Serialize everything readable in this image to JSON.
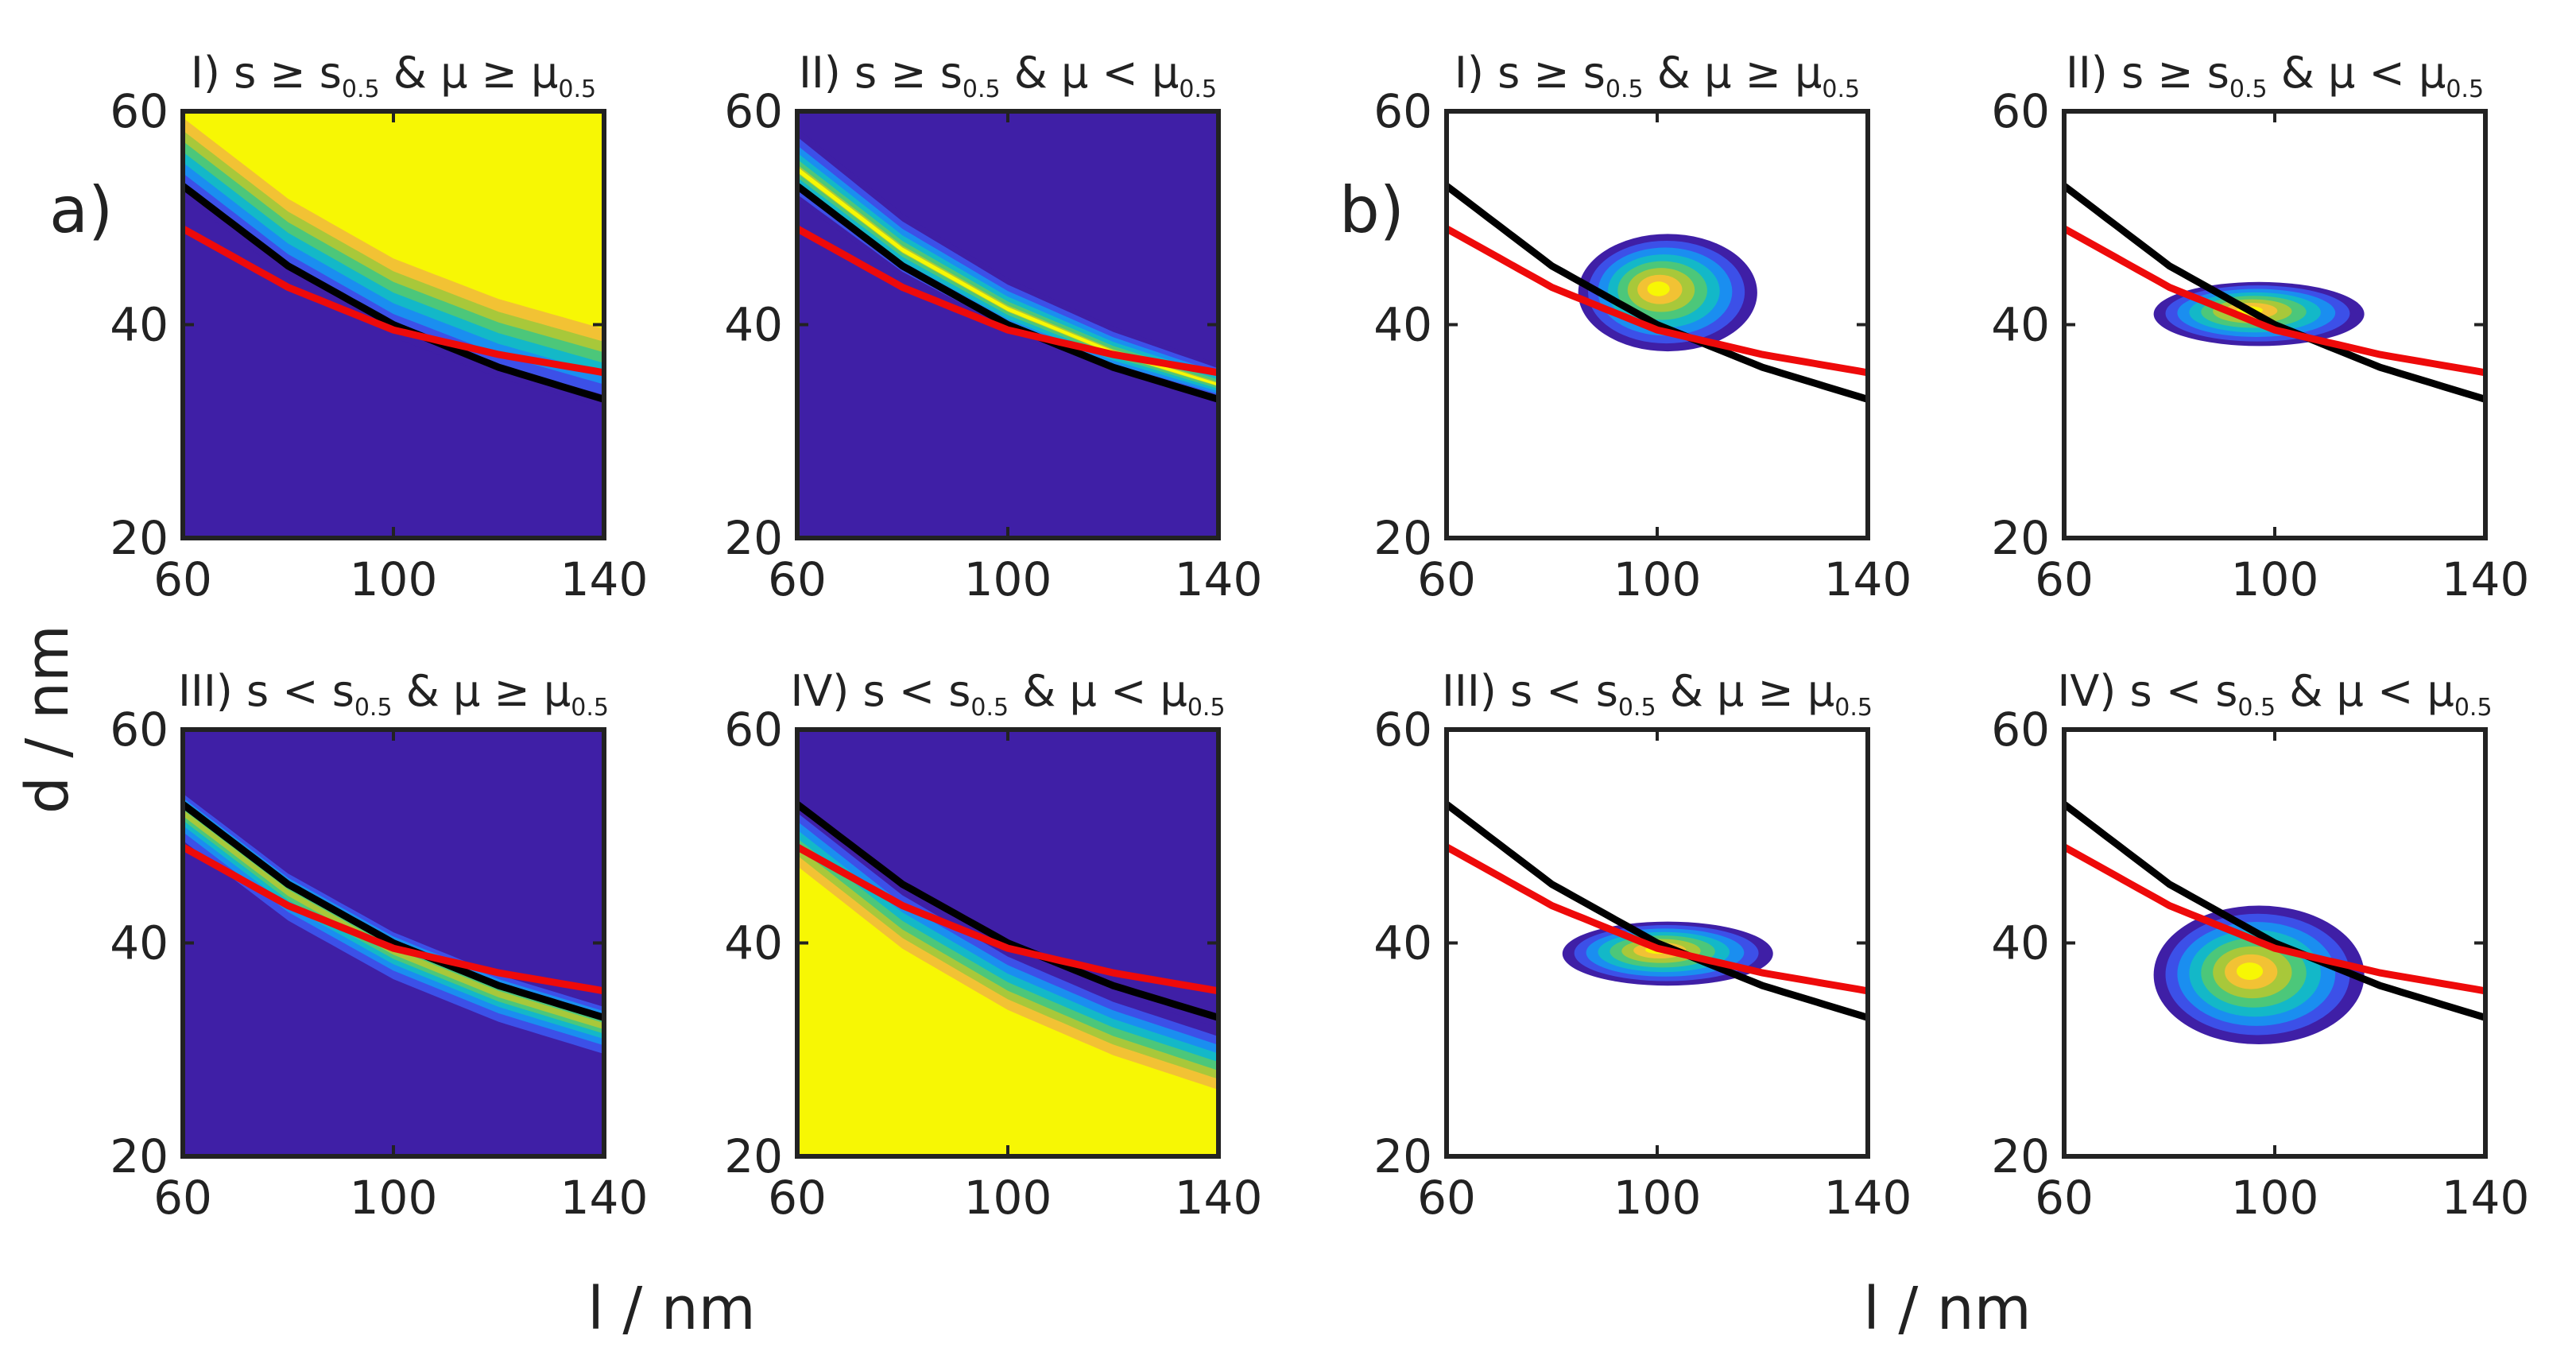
{
  "figure": {
    "panel_letters": [
      "a)",
      "b)"
    ],
    "ylabel": "d / nm",
    "xlabels": [
      "l / nm",
      "l / nm"
    ]
  },
  "colors": {
    "background_dark": "#3f1fa6",
    "fill_yellow": "#f7f704",
    "black_curve": "#000000",
    "red_curve": "#ee0a0a",
    "frame": "#222222",
    "colormap": [
      "#3f1fa6",
      "#3c50e8",
      "#1a8ef0",
      "#13b8c8",
      "#4cc77a",
      "#a8c83a",
      "#f2c234",
      "#f7f704"
    ]
  },
  "titles": {
    "I": {
      "roman": "I)",
      "text": "s ≥ s",
      "sub1": "0.5",
      "text2": " & μ ≥ μ",
      "sub2": "0.5"
    },
    "II": {
      "roman": "II)",
      "text": "s ≥ s",
      "sub1": "0.5",
      "text2": " & μ < μ",
      "sub2": "0.5"
    },
    "III": {
      "roman": "III)",
      "text": "s < s",
      "sub1": "0.5",
      "text2": " & μ ≥ μ",
      "sub2": "0.5"
    },
    "IV": {
      "roman": "IV)",
      "text": "s < s",
      "sub1": "0.5",
      "text2": " & μ < μ",
      "sub2": "0.5"
    }
  },
  "chart_data": {
    "type": "heatmap",
    "x_range": [
      60,
      140
    ],
    "y_range": [
      20,
      60
    ],
    "x_ticks": [
      60,
      100,
      140
    ],
    "y_ticks": [
      20,
      40,
      60
    ],
    "curves": {
      "black": {
        "x": [
          60,
          80,
          100,
          120,
          140
        ],
        "y": [
          53,
          45.5,
          40,
          36,
          33
        ]
      },
      "red": {
        "x": [
          60,
          80,
          100,
          120,
          140
        ],
        "y": [
          49,
          43.5,
          39.5,
          37.2,
          35.5
        ]
      }
    },
    "panels": [
      {
        "id": "a-I",
        "group": "a",
        "case": "I",
        "style": "map",
        "fill_region": "above"
      },
      {
        "id": "a-II",
        "group": "a",
        "case": "II",
        "style": "map",
        "fill_region": "band"
      },
      {
        "id": "a-III",
        "group": "a",
        "case": "III",
        "style": "map",
        "fill_region": "band_below"
      },
      {
        "id": "a-IV",
        "group": "a",
        "case": "IV",
        "style": "map",
        "fill_region": "below"
      },
      {
        "id": "b-I",
        "group": "b",
        "case": "I",
        "style": "blob",
        "blob_center": [
          102,
          43
        ],
        "blob_spread": [
          17,
          5.5
        ]
      },
      {
        "id": "b-II",
        "group": "b",
        "case": "II",
        "style": "blob",
        "blob_center": [
          97,
          41
        ],
        "blob_spread": [
          20,
          3
        ]
      },
      {
        "id": "b-III",
        "group": "b",
        "case": "III",
        "style": "blob",
        "blob_center": [
          102,
          39
        ],
        "blob_spread": [
          20,
          3
        ]
      },
      {
        "id": "b-IV",
        "group": "b",
        "case": "IV",
        "style": "blob",
        "blob_center": [
          97,
          37
        ],
        "blob_spread": [
          20,
          6.5
        ]
      }
    ]
  }
}
